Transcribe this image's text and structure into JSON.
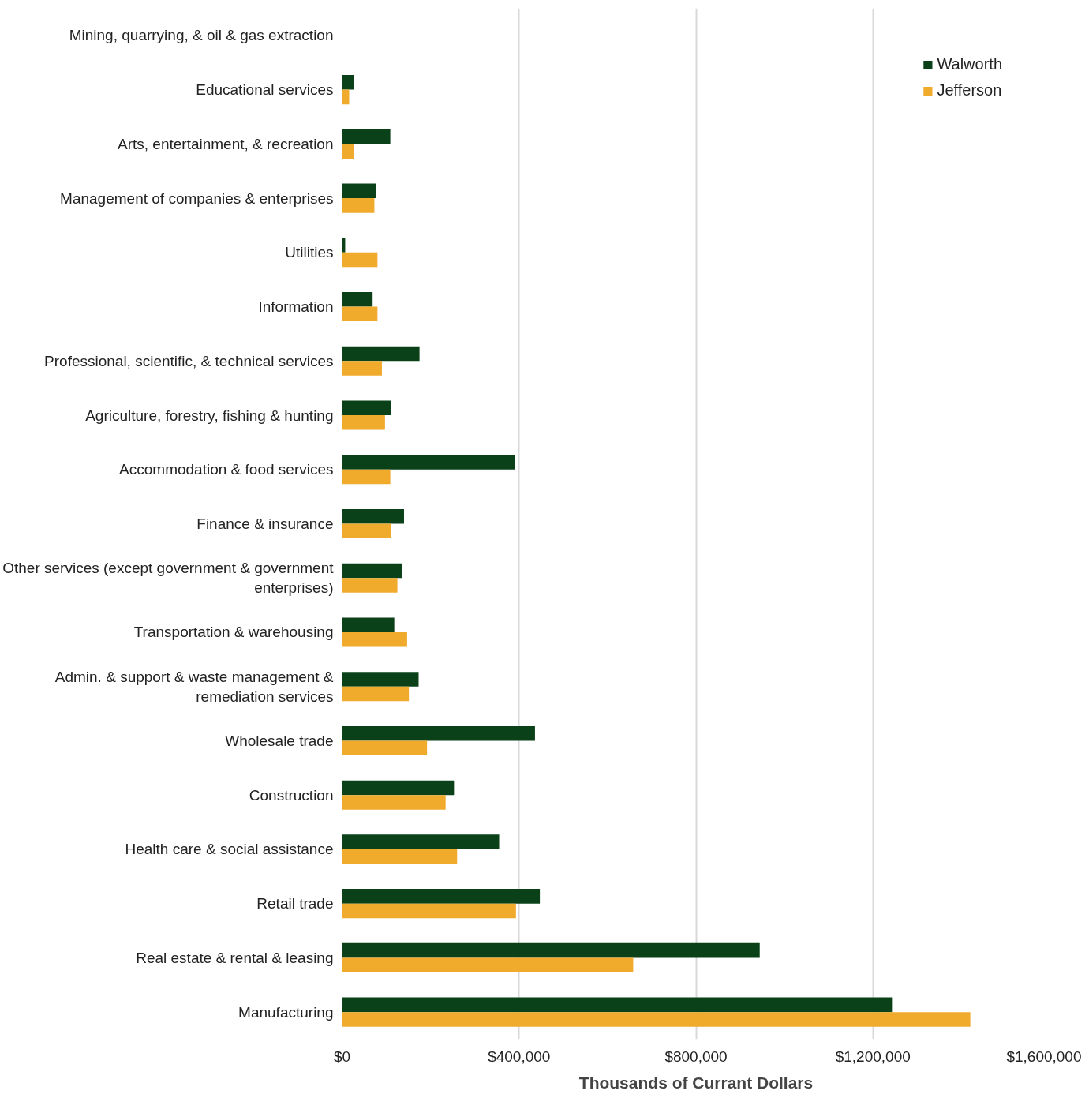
{
  "chart_data": {
    "type": "bar",
    "orientation": "horizontal",
    "xlabel": "Thousands of Currant Dollars",
    "categories": [
      "Mining, quarrying, & oil & gas extraction",
      "Educational services",
      "Arts, entertainment, & recreation",
      "Management of companies & enterprises",
      "Utilities",
      "Information",
      "Professional, scientific, & technical services",
      "Agriculture, forestry, fishing & hunting",
      "Accommodation & food services",
      "Finance & insurance",
      "Other services (except government & government enterprises)",
      "Transportation & warehousing",
      "Admin. & support & waste management & remediation services",
      "Wholesale trade",
      "Construction",
      "Health care & social assistance",
      "Retail trade",
      "Real estate & rental & leasing",
      "Manufacturing"
    ],
    "series": [
      {
        "name": "Walworth",
        "color": "#0b4118",
        "values": [
          null,
          26000,
          109000,
          76000,
          7000,
          69000,
          175000,
          111000,
          390000,
          140000,
          135000,
          118000,
          173000,
          436000,
          253000,
          355000,
          447000,
          944000,
          1243000
        ]
      },
      {
        "name": "Jefferson",
        "color": "#f0aa2c",
        "values": [
          null,
          16000,
          26000,
          73000,
          80000,
          80000,
          90000,
          97000,
          109000,
          111000,
          125000,
          147000,
          151000,
          192000,
          234000,
          260000,
          393000,
          658000,
          1420000
        ]
      }
    ],
    "xlim": [
      0,
      1600000
    ],
    "xticks": [
      {
        "value": 0,
        "label": "$0"
      },
      {
        "value": 400000,
        "label": "$400,000"
      },
      {
        "value": 800000,
        "label": "$800,000"
      },
      {
        "value": 1200000,
        "label": "$1,200,000"
      },
      {
        "value": 1600000,
        "label": "$1,600,000"
      }
    ],
    "grid": "x",
    "legend": "top right"
  }
}
